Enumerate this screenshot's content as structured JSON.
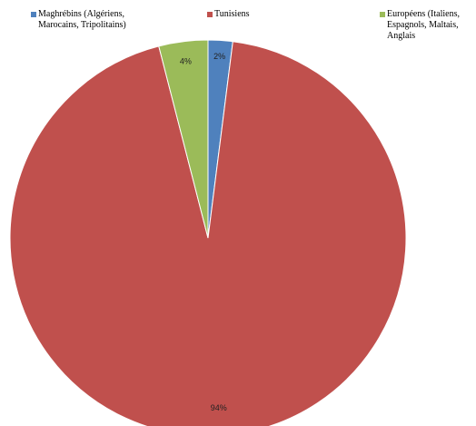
{
  "chart_data": {
    "type": "pie",
    "categories": [
      "Maghrébins (Algériens,\nMarocains, Tripolitains)",
      "Tunisiens",
      "Européens (Italiens,\nEspagnols, Maltais,\nAnglais"
    ],
    "values": [
      2,
      94,
      4
    ],
    "value_labels": [
      "2%",
      "94%",
      "4%"
    ],
    "colors": [
      "#4f81bd",
      "#c0504d",
      "#9bbb59"
    ],
    "legend": "top",
    "title": "",
    "start_angle_deg": 0,
    "direction": "clockwise"
  }
}
